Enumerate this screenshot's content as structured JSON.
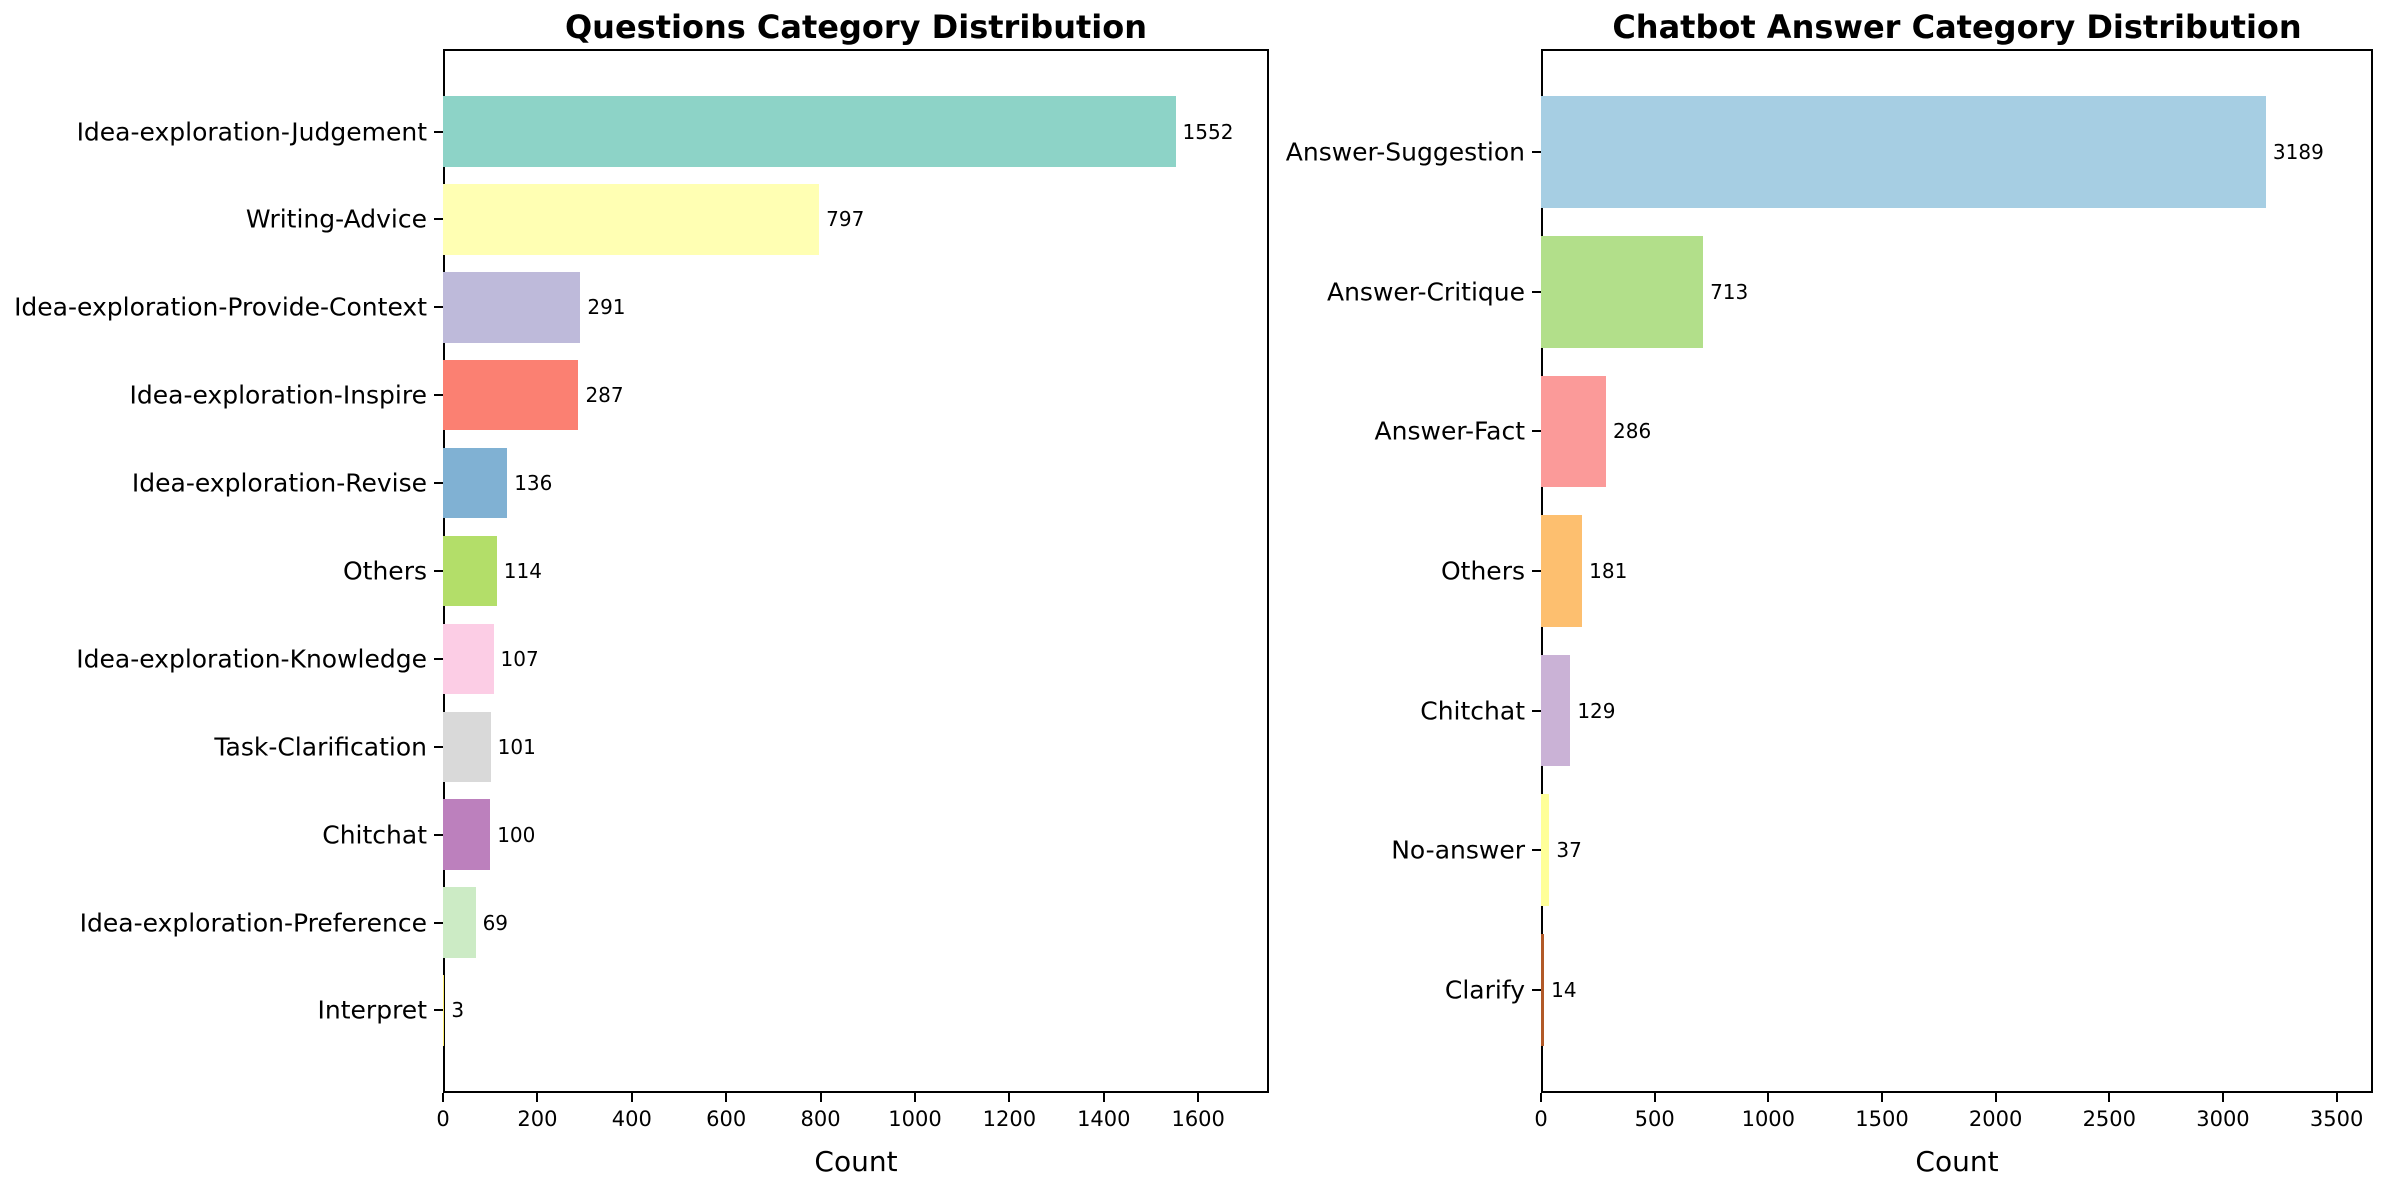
{
  "chart_data": [
    {
      "type": "bar",
      "orientation": "horizontal",
      "title": "Questions Category Distribution",
      "xlabel": "Count",
      "xlim": [
        0,
        1750
      ],
      "xticks": [
        0,
        200,
        400,
        600,
        800,
        1000,
        1200,
        1400,
        1600
      ],
      "grid": false,
      "legend": "none",
      "categories": [
        "Idea-exploration-Judgement",
        "Writing-Advice",
        "Idea-exploration-Provide-Context",
        "Idea-exploration-Inspire",
        "Idea-exploration-Revise",
        "Others",
        "Idea-exploration-Knowledge",
        "Task-Clarification",
        "Chitchat",
        "Idea-exploration-Preference",
        "Interpret"
      ],
      "values": [
        1552,
        797,
        291,
        287,
        136,
        114,
        107,
        101,
        100,
        69,
        3
      ],
      "colors": [
        "#8dd3c7",
        "#ffffb3",
        "#bebada",
        "#fb8072",
        "#80b1d3",
        "#b3de69",
        "#fccde5",
        "#d9d9d9",
        "#bc80bd",
        "#ccebc5",
        "#ffed6f"
      ]
    },
    {
      "type": "bar",
      "orientation": "horizontal",
      "title": "Chatbot Answer Category Distribution",
      "xlabel": "Count",
      "xlim": [
        0,
        3660
      ],
      "xticks": [
        0,
        500,
        1000,
        1500,
        2000,
        2500,
        3000,
        3500
      ],
      "grid": false,
      "legend": "none",
      "categories": [
        "Answer-Suggestion",
        "Answer-Critique",
        "Answer-Fact",
        "Others",
        "Chitchat",
        "No-answer",
        "Clarify"
      ],
      "values": [
        3189,
        713,
        286,
        181,
        129,
        37,
        14
      ],
      "colors": [
        "#a6cee3",
        "#b2df8a",
        "#fb9a99",
        "#fdbf6f",
        "#cab2d6",
        "#ffff99",
        "#b15928"
      ]
    }
  ]
}
